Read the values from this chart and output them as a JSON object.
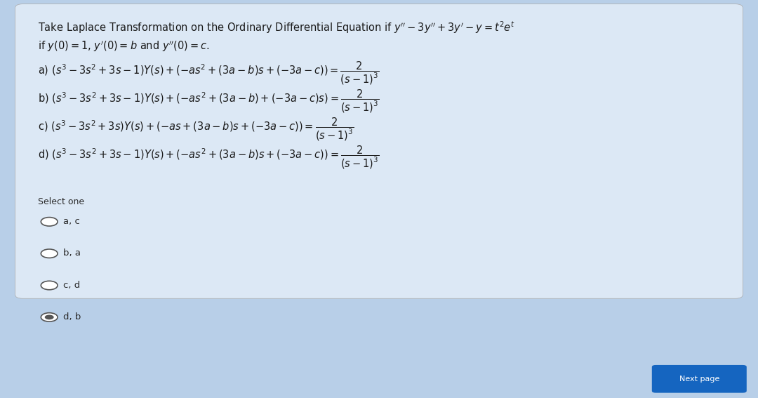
{
  "background_color": "#b8cfe8",
  "card_color": "#dce8f5",
  "select_one_label": "Select one",
  "radio_options": [
    "a, c",
    "b, a",
    "c, d",
    "d, b"
  ],
  "selected_index": 3,
  "text_color": "#1a1a1a",
  "label_color": "#2a2a2a",
  "radio_color": "#555555",
  "button_color": "#1565c0",
  "button_text": "Next page"
}
